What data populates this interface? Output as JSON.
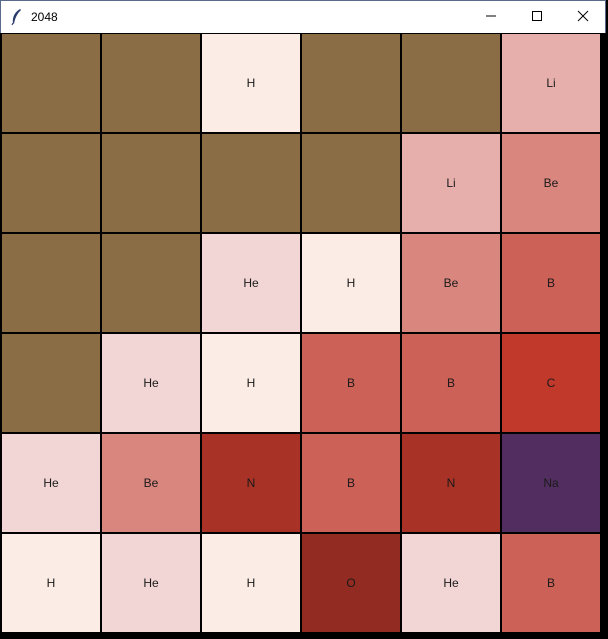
{
  "window": {
    "title": "2048",
    "icon": "feather-icon",
    "controls": {
      "minimize_icon": "minimize-icon",
      "maximize_icon": "maximize-icon",
      "close_icon": "close-icon"
    }
  },
  "colors": {
    "empty": "#8a6d45",
    "H": "#fbece5",
    "He": "#f2d6d5",
    "Li": "#e6afab",
    "Be": "#d9867f",
    "B": "#cc6157",
    "C": "#c0392b",
    "N": "#a93226",
    "O": "#922b21",
    "Na": "#512e5f"
  },
  "board": {
    "rows": [
      [
        "",
        "",
        "H",
        "",
        "",
        "Li"
      ],
      [
        "",
        "",
        "",
        "",
        "Li",
        "Be"
      ],
      [
        "",
        "",
        "He",
        "H",
        "Be",
        "B"
      ],
      [
        "",
        "He",
        "H",
        "B",
        "B",
        "C"
      ],
      [
        "He",
        "Be",
        "N",
        "B",
        "N",
        "Na"
      ],
      [
        "H",
        "He",
        "H",
        "O",
        "He",
        "B"
      ]
    ]
  }
}
